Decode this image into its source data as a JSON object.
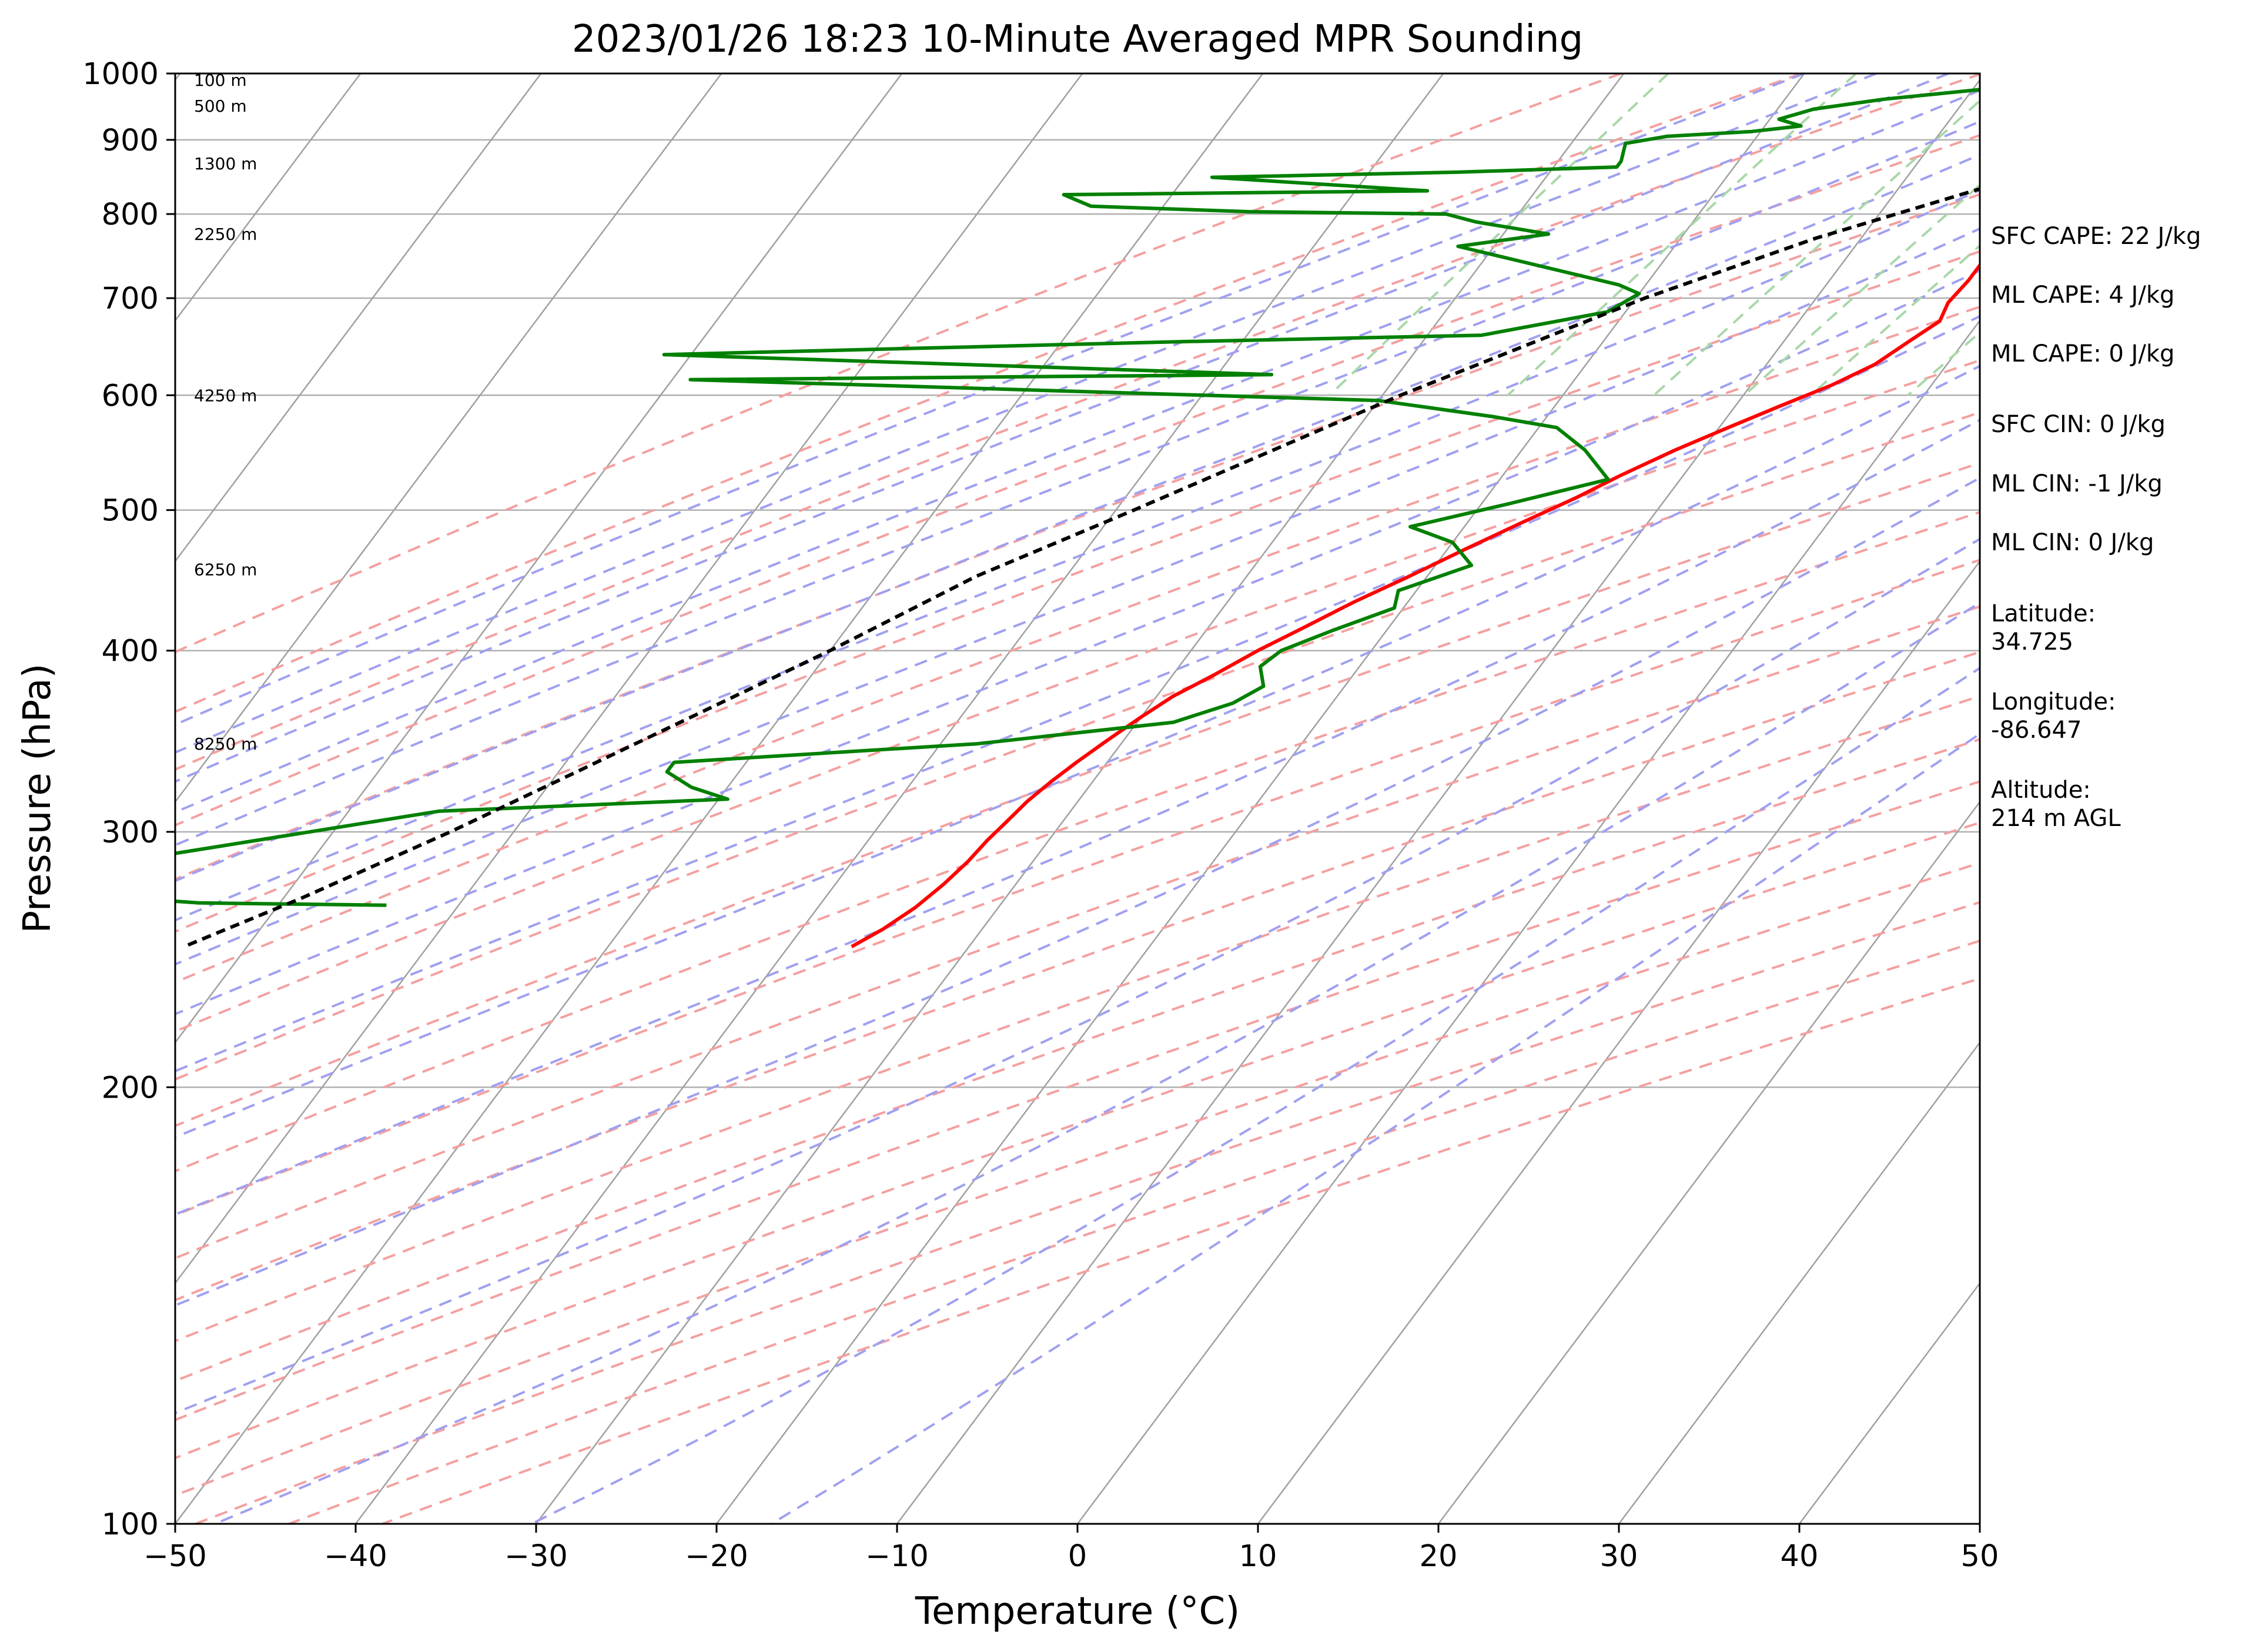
{
  "chart_data": {
    "type": "line",
    "title": "2023/01/26 18:23 10-Minute Averaged MPR Sounding",
    "xlabel": "Temperature (°C)",
    "ylabel": "Pressure (hPa)",
    "xlim": [
      -50,
      50
    ],
    "ylim": [
      1000,
      100
    ],
    "y_scale": "log",
    "skew": "temperature isotherms skewed to the right with height",
    "grid": true,
    "x_ticks": [
      "−50",
      "−40",
      "−30",
      "−20",
      "−10",
      "0",
      "10",
      "20",
      "30",
      "40",
      "50"
    ],
    "y_ticks": [
      "100",
      "200",
      "300",
      "400",
      "500",
      "600",
      "700",
      "800",
      "900",
      "1000"
    ],
    "series": [
      {
        "role": "temperature",
        "color": "#ff0000",
        "points": [
          [
            6.5,
            1000
          ],
          [
            5.0,
            980
          ],
          [
            3.0,
            955
          ],
          [
            1.5,
            945
          ],
          [
            -0.5,
            935
          ],
          [
            -2.0,
            925
          ],
          [
            -2.7,
            910
          ],
          [
            -3.0,
            890
          ],
          [
            -3.2,
            870
          ],
          [
            -2.8,
            855
          ],
          [
            -2.9,
            835
          ],
          [
            -2.6,
            820
          ],
          [
            -2.5,
            805
          ],
          [
            -2.3,
            790
          ],
          [
            -2.2,
            770
          ],
          [
            -2.3,
            745
          ],
          [
            -2.3,
            720
          ],
          [
            -2.5,
            695
          ],
          [
            -2.2,
            675
          ],
          [
            -3.0,
            655
          ],
          [
            -4.0,
            630
          ],
          [
            -5.5,
            610
          ],
          [
            -7.5,
            590
          ],
          [
            -9.5,
            570
          ],
          [
            -11.5,
            550
          ],
          [
            -13.5,
            528
          ],
          [
            -15.0,
            510
          ],
          [
            -17.0,
            490
          ],
          [
            -19.0,
            470
          ],
          [
            -21.0,
            450
          ],
          [
            -23.0,
            432
          ],
          [
            -24.7,
            415
          ],
          [
            -26.3,
            400
          ],
          [
            -27.7,
            385
          ],
          [
            -29.1,
            372
          ],
          [
            -30.0,
            360
          ],
          [
            -30.9,
            347
          ],
          [
            -31.7,
            335
          ],
          [
            -32.3,
            325
          ],
          [
            -32.8,
            315
          ],
          [
            -33.1,
            305
          ],
          [
            -33.4,
            296
          ],
          [
            -33.6,
            286
          ],
          [
            -34.0,
            276
          ],
          [
            -34.6,
            266
          ],
          [
            -35.5,
            257
          ],
          [
            -36.5,
            250
          ]
        ]
      },
      {
        "role": "dewpoint",
        "color": "#008000",
        "points": [
          [
            -1.5,
            1000
          ],
          [
            -5.0,
            990
          ],
          [
            -9.5,
            975
          ],
          [
            -14.5,
            960
          ],
          [
            -18.0,
            945
          ],
          [
            -19.5,
            930
          ],
          [
            -18.0,
            920
          ],
          [
            -20.5,
            912
          ],
          [
            -25.0,
            905
          ],
          [
            -27.0,
            895
          ],
          [
            -26.5,
            870
          ],
          [
            -26.5,
            862
          ],
          [
            -35.0,
            855
          ],
          [
            -48.5,
            848
          ],
          [
            -36.0,
            830
          ],
          [
            -56.0,
            825
          ],
          [
            -54.0,
            810
          ],
          [
            -45.0,
            803
          ],
          [
            -34.0,
            800
          ],
          [
            -32.0,
            790
          ],
          [
            -27.5,
            775
          ],
          [
            -32.0,
            760
          ],
          [
            -21.5,
            715
          ],
          [
            -20.0,
            705
          ],
          [
            -21.0,
            685
          ],
          [
            -27.0,
            660
          ],
          [
            -44.0,
            653
          ],
          [
            -71.5,
            640
          ],
          [
            -37.0,
            620
          ],
          [
            -69.0,
            615
          ],
          [
            -30.0,
            595
          ],
          [
            -23.0,
            580
          ],
          [
            -19.0,
            570
          ],
          [
            -16.5,
            550
          ],
          [
            -14.0,
            525
          ],
          [
            -18.5,
            505
          ],
          [
            -23.0,
            487
          ],
          [
            -20.0,
            475
          ],
          [
            -18.0,
            458
          ],
          [
            -21.0,
            440
          ],
          [
            -20.5,
            428
          ],
          [
            -23.0,
            413
          ],
          [
            -25.0,
            400
          ],
          [
            -25.5,
            390
          ],
          [
            -24.5,
            378
          ],
          [
            -25.5,
            368
          ],
          [
            -28.0,
            357
          ],
          [
            -38.0,
            345
          ],
          [
            -54.0,
            335
          ],
          [
            -54.0,
            330
          ],
          [
            -52.0,
            322
          ],
          [
            -49.5,
            316
          ],
          [
            -65.0,
            310
          ],
          [
            -88.0,
            275
          ],
          [
            -74.5,
            268
          ],
          [
            -64.0,
            267
          ]
        ]
      },
      {
        "role": "parcel",
        "color": "#000000",
        "dashed": true,
        "points": [
          [
            6.5,
            1000
          ],
          [
            1.0,
            900
          ],
          [
            -1.4,
            872
          ],
          [
            -3.6,
            850
          ],
          [
            -8.5,
            805
          ],
          [
            -12.5,
            770
          ],
          [
            -19.5,
            700
          ],
          [
            -29.0,
            600
          ],
          [
            -39.0,
            500
          ],
          [
            -45.0,
            450
          ],
          [
            -50.0,
            400
          ],
          [
            -59.0,
            330
          ],
          [
            -63.5,
            300
          ],
          [
            -69.0,
            270
          ],
          [
            -73.5,
            250
          ]
        ]
      }
    ],
    "height_labels": [
      {
        "text": "100 m",
        "p": 990
      },
      {
        "text": "500 m",
        "p": 950
      },
      {
        "text": "1300 m",
        "p": 867
      },
      {
        "text": "2250 m",
        "p": 775
      },
      {
        "text": "4250 m",
        "p": 600
      },
      {
        "text": "6250 m",
        "p": 455
      },
      {
        "text": "8250 m",
        "p": 345
      }
    ],
    "annotations": [
      "SFC CAPE: 22 J/kg",
      "ML CAPE: 4 J/kg",
      "ML CAPE: 0 J/kg",
      "SFC CIN: 0 J/kg",
      "ML CIN: -1 J/kg",
      "ML CIN: 0 J/kg",
      "Latitude:",
      "34.725",
      "Longitude:",
      "-86.647",
      "Altitude:",
      "214 m AGL"
    ]
  },
  "colors": {
    "temperature": "#ff0000",
    "dewpoint": "#008000",
    "parcel": "#000000",
    "dry_adiabat": "#f4a0a0",
    "moist_adiabat": "#a0a0f0",
    "mixing_ratio": "#a8d8a8",
    "isotherm": "#a0a0a0"
  }
}
